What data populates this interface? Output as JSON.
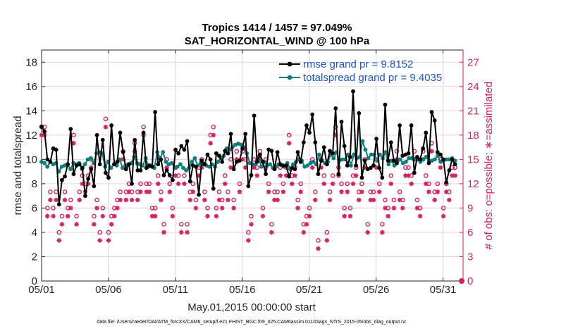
{
  "chart_data": {
    "type": "line",
    "title_line1": "Tropics 1414 / 1457 = 97.049%",
    "title_line2": "SAT_HORIZONTAL_WIND @ 100 hPa",
    "xlabel": "May.01,2015 00:00:00 start",
    "ylabel": "rmse and totalspread",
    "ylabel_right": "# of obs: o=possible; ∗=assimilated",
    "footnote": "data file: /Users/raeder/DAI/ATM_forcXX/CAM6_setup/f.e21.FHIST_BGC.f09_025.CAM6assim.011/Diags_NTrS_2015-05/obs_diag_output.nc",
    "xlim": [
      0,
      31.5
    ],
    "ylim": [
      0,
      19
    ],
    "ylim_right": [
      0,
      28.5
    ],
    "x_ticks": [
      0,
      5,
      10,
      15,
      20,
      25,
      30
    ],
    "x_tick_labels": [
      "05/01",
      "05/06",
      "05/11",
      "05/16",
      "05/21",
      "05/26",
      "05/31"
    ],
    "y_ticks": [
      0,
      2,
      4,
      6,
      8,
      10,
      12,
      14,
      16,
      18
    ],
    "y_tick_labels": [
      "0",
      "2",
      "4",
      "6",
      "8",
      "10",
      "12",
      "14",
      "16",
      "18"
    ],
    "y_ticks_right": [
      0,
      3,
      6,
      9,
      12,
      15,
      18,
      21,
      24,
      27
    ],
    "y_tick_labels_right": [
      "0",
      "3",
      "6",
      "9",
      "12",
      "15",
      "18",
      "21",
      "24",
      "27"
    ],
    "colors": {
      "rmse": "#000000",
      "spread": "#0e7d7d",
      "obs": "#d6215e",
      "legend_text": "#1a56d6",
      "grid": "#e8d0d8"
    },
    "series": [
      {
        "name": "rmse",
        "legend": "rmse grand pr = 9.8152",
        "values": [
          12.7,
          12.3,
          10,
          9.8,
          10.9,
          10.8,
          6.3,
          8.3,
          8.6,
          9.6,
          12.5,
          8.8,
          9.5,
          9.6,
          9.3,
          7,
          8.4,
          9.2,
          7.8,
          12,
          9.6,
          11.6,
          8.9,
          8.5,
          12.8,
          9.6,
          9.8,
          12.2,
          10.6,
          9.2,
          9.6,
          8,
          11.6,
          9.1,
          9.1,
          12.2,
          9.3,
          9.5,
          9.4,
          13.9,
          9.6,
          10,
          8.7,
          9.1,
          8.7,
          8.3,
          10.8,
          10.5,
          11.1,
          10.8,
          11.5,
          8.2,
          9.5,
          9.4,
          7.1,
          9.9,
          9.6,
          10.4,
          10,
          7.6,
          10.5,
          10.3,
          9.8,
          10.7,
          10.5,
          12.1,
          9.2,
          9.8,
          9.9,
          10.9,
          12.1,
          7.8,
          8.7,
          13.6,
          9.8,
          10.4,
          9.8,
          8.8,
          10.8,
          10.7,
          9.2,
          10.6,
          9.6,
          9.5,
          9.5,
          8.6,
          9.3,
          9.2,
          10.6,
          9.8,
          11.4,
          12.8,
          12.2,
          13.7,
          11.4,
          8.8,
          9.9,
          11,
          9.6,
          10.7,
          10.5,
          14.2,
          8.8,
          13.1,
          11.1,
          9.5,
          10.2,
          15.6,
          9.5,
          13.8,
          8.5,
          9.9,
          9.2,
          9.3,
          9.5,
          11.7,
          9.3,
          8.5,
          14.5,
          9.9,
          11.4,
          9.9,
          9.7,
          12.8,
          10.3,
          10.4,
          10.5,
          12.8,
          8.9,
          10.2,
          10,
          10.9,
          12.2,
          9.7,
          13.9,
          13.2,
          10.6,
          10.4,
          10,
          8.1,
          9.1,
          10,
          9.6
        ]
      },
      {
        "name": "totalspread",
        "legend": "totalspread grand pr = 9.4035",
        "values": [
          9.8,
          9.7,
          9.4,
          9.8,
          9.6,
          9.7,
          9,
          9.4,
          9.5,
          9.6,
          9.2,
          9.7,
          9.6,
          9.7,
          9.2,
          9.6,
          10,
          10.1,
          9.7,
          10.5,
          10.6,
          10.5,
          9.4,
          9.8,
          9.3,
          9.6,
          9.5,
          10,
          9.3,
          9.5,
          9.6,
          9.7,
          10.2,
          9.7,
          9.6,
          9.5,
          10.1,
          9.4,
          9.5,
          9.3,
          10.6,
          10.1,
          10.6,
          9.8,
          9.6,
          9.7,
          9.3,
          9.4,
          9.6,
          9.3,
          9.1,
          9.3,
          9.8,
          10.1,
          9.5,
          9.7,
          9.6,
          9.5,
          9.4,
          9.6,
          9.4,
          9.8,
          10.1,
          10.3,
          10.9,
          10.8,
          11,
          11.2,
          11.3,
          11.2,
          11,
          10.5,
          9.7,
          9.6,
          9.6,
          10.2,
          9.4,
          9.8,
          9.5,
          9.6,
          9.3,
          9.4,
          9.6,
          9.5,
          9.4,
          9.7,
          9.2,
          9.6,
          9.8,
          10,
          9.9,
          9.4,
          9.5,
          9.7,
          9.8,
          9.6,
          10.4,
          9.9,
          9.7,
          9.8,
          10.4,
          10.1,
          10.6,
          9.9,
          10,
          10,
          10.4,
          9.5,
          10.4,
          10.1,
          10.2,
          11.5,
          10.8,
          10.1,
          10.4,
          10.4,
          9.9,
          10.4,
          10.1,
          10.6,
          9.6,
          9.9,
          9.5,
          9.8,
          10,
          9.7,
          9.8,
          10.1,
          10.1,
          10,
          10,
          9.8,
          10,
          10.2,
          9.9,
          9.9,
          10,
          10.3,
          9.8,
          9.9,
          10,
          10,
          10.1,
          9.9
        ]
      }
    ],
    "obs_possible_right_units": [
      19,
      19,
      9,
      11,
      9,
      11,
      6,
      8,
      11,
      9,
      10,
      18,
      8,
      11,
      13,
      12,
      13,
      15,
      8,
      10,
      6,
      9,
      20,
      6,
      8,
      9,
      10,
      11,
      16,
      11,
      12,
      11,
      17,
      11,
      12,
      19,
      12,
      12,
      9,
      9,
      13,
      11,
      7,
      15,
      12,
      9,
      14,
      13,
      7,
      13,
      7,
      11,
      12,
      10,
      14,
      15,
      11,
      9,
      18,
      19,
      9,
      11,
      10,
      13,
      11,
      15,
      10,
      16,
      12,
      16,
      15,
      6,
      8,
      15,
      14,
      16,
      9,
      15,
      12,
      7,
      11,
      11,
      14,
      12,
      14,
      18,
      13,
      14,
      10,
      12,
      7,
      8,
      9,
      15,
      11,
      5,
      15,
      13,
      6,
      11,
      13,
      19,
      14,
      12,
      9,
      12,
      9,
      13,
      14,
      11,
      12,
      15,
      7,
      11,
      11,
      15,
      12,
      7,
      10,
      9,
      13,
      10,
      16,
      11,
      10,
      14,
      14,
      13,
      16,
      10,
      9,
      16,
      13,
      12,
      17,
      11,
      12,
      15,
      9,
      12,
      11,
      14,
      14
    ],
    "obs_assimilated_right_units": [
      18,
      18,
      8,
      10,
      8,
      10,
      5,
      7,
      10,
      8,
      9,
      17,
      7,
      10,
      12,
      11,
      12,
      14,
      7,
      9,
      5,
      8,
      19,
      5,
      7,
      8,
      9,
      10,
      15,
      10,
      11,
      10,
      16,
      10,
      11,
      18,
      11,
      11,
      8,
      8,
      12,
      10,
      6,
      14,
      11,
      8,
      13,
      12,
      6,
      12,
      6,
      10,
      11,
      9,
      13,
      14,
      10,
      8,
      17,
      18,
      8,
      10,
      9,
      12,
      10,
      14,
      9,
      15,
      11,
      15,
      14,
      5,
      7,
      14,
      13,
      15,
      8,
      14,
      11,
      6,
      10,
      10,
      13,
      11,
      13,
      17,
      12,
      13,
      9,
      11,
      6,
      7,
      8,
      14,
      10,
      4,
      14,
      12,
      5,
      10,
      12,
      18,
      13,
      11,
      8,
      11,
      8,
      12,
      13,
      10,
      11,
      14,
      6,
      10,
      10,
      14,
      11,
      6,
      9,
      8,
      12,
      9,
      15,
      10,
      9,
      13,
      13,
      12,
      15,
      9,
      8,
      15,
      12,
      11,
      16,
      10,
      11,
      14,
      8,
      11,
      10,
      13,
      13
    ]
  }
}
